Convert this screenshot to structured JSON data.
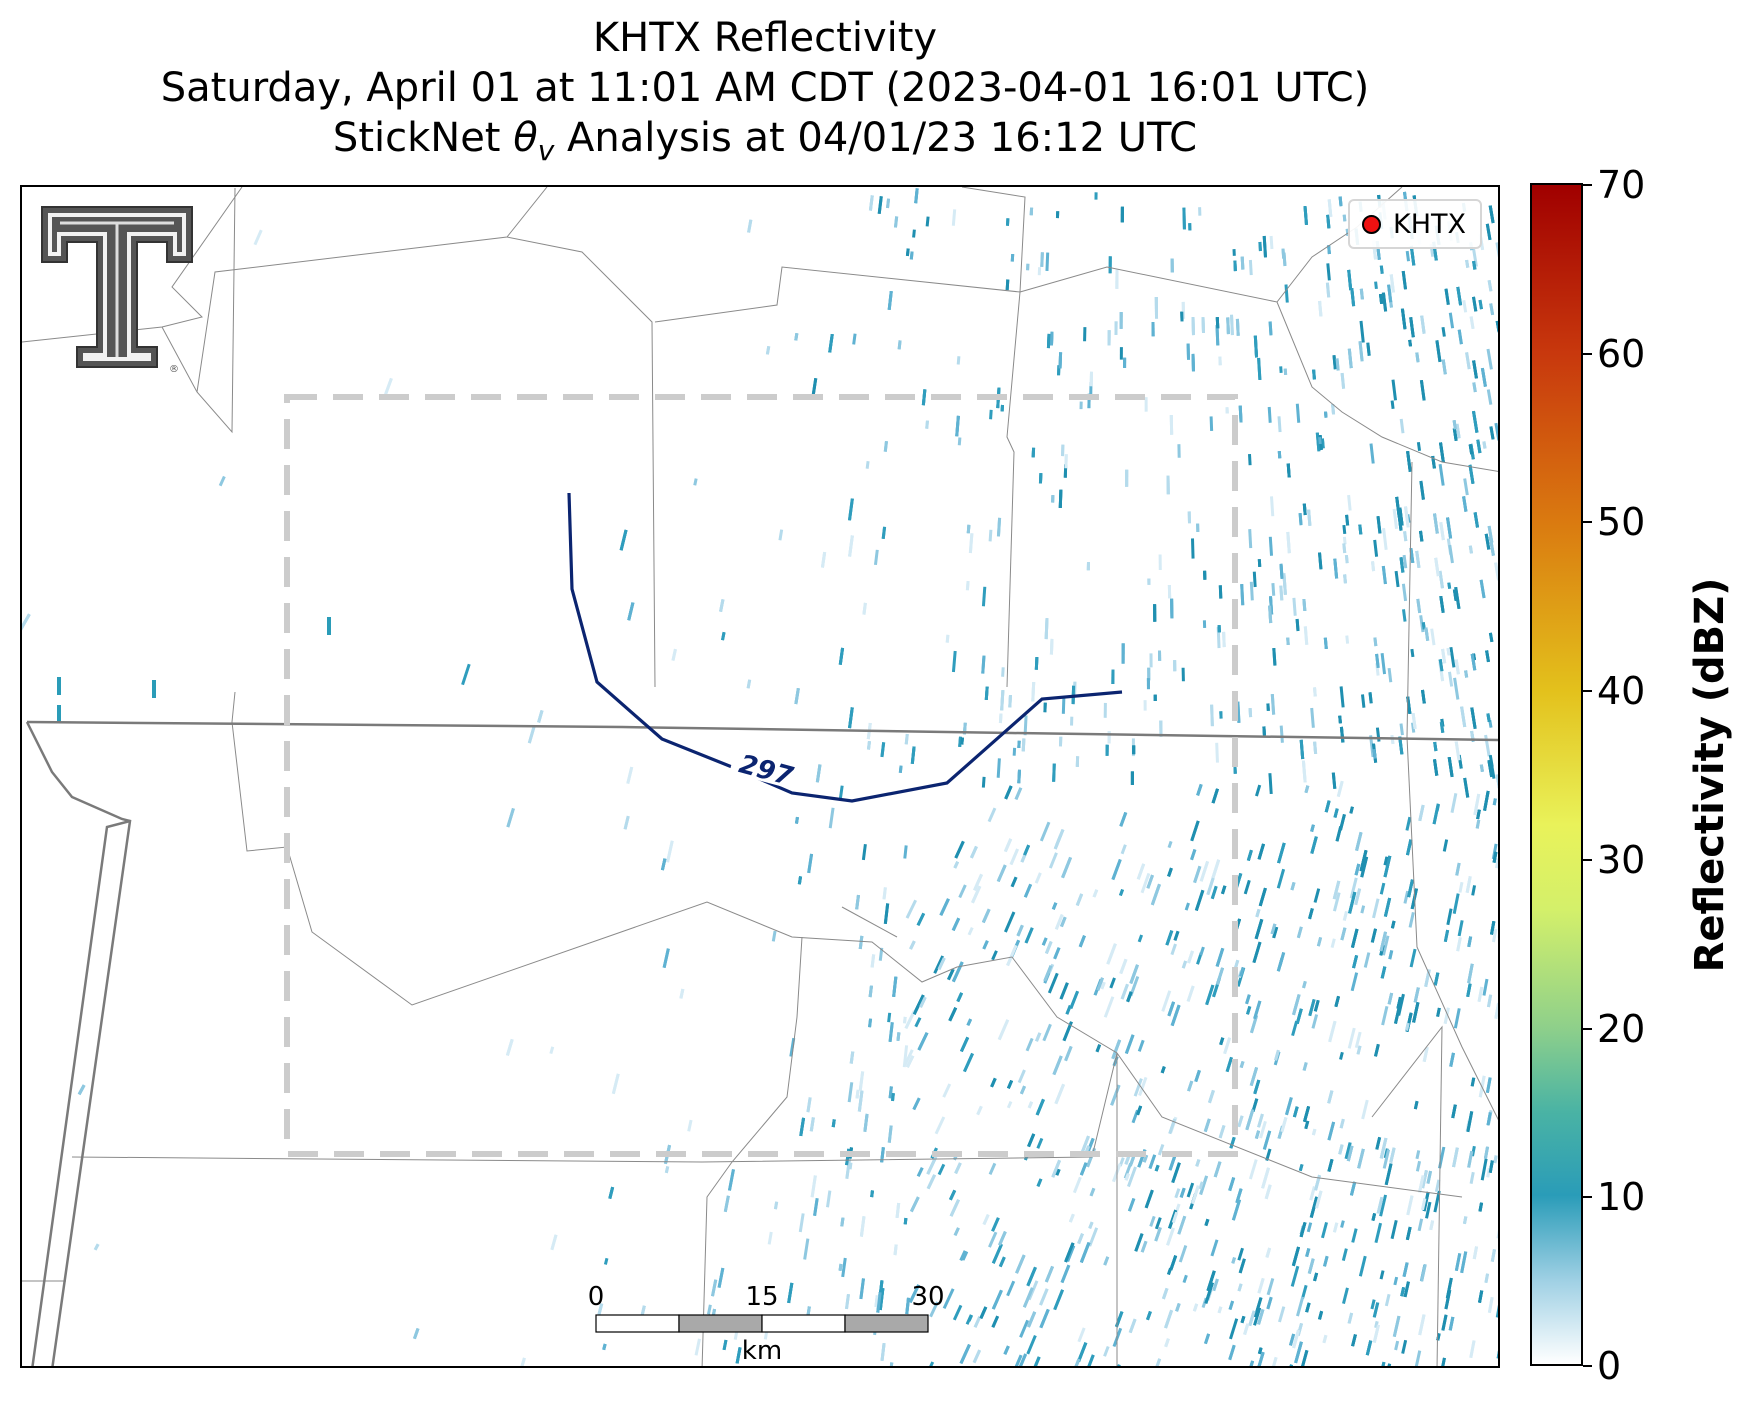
{
  "title": {
    "line1": "KHTX Reflectivity",
    "line2": "Saturday, April 01 at 11:01 AM CDT (2023-04-01 16:01 UTC)",
    "line3_prefix": "StickNet ",
    "line3_theta": "θ",
    "line3_sub": "v",
    "line3_suffix": " Analysis at 04/01/23 16:12 UTC"
  },
  "legend": {
    "marker_color": "#ee1111",
    "label": "KHTX"
  },
  "contour": {
    "label": "297",
    "color": "#0b2470"
  },
  "colorbar": {
    "title": "Reflectivity (dBZ)",
    "ticks": [
      "0",
      "10",
      "20",
      "30",
      "40",
      "50",
      "60",
      "70"
    ],
    "min": 0,
    "max": 70,
    "stops": [
      {
        "v": 0,
        "c": "#ffffff"
      },
      {
        "v": 5,
        "c": "#9fd0e4"
      },
      {
        "v": 10,
        "c": "#2a9cb8"
      },
      {
        "v": 15,
        "c": "#4ab3a4"
      },
      {
        "v": 20,
        "c": "#8fd08a"
      },
      {
        "v": 27,
        "c": "#d4f06a"
      },
      {
        "v": 32,
        "c": "#e9f25a"
      },
      {
        "v": 40,
        "c": "#e3c11c"
      },
      {
        "v": 50,
        "c": "#da7a10"
      },
      {
        "v": 60,
        "c": "#c8380d"
      },
      {
        "v": 70,
        "c": "#a00000"
      }
    ]
  },
  "scale_bar": {
    "labels": [
      "0",
      "15",
      "30"
    ],
    "unit": "km"
  },
  "logo": {
    "icon": "texas-tech-double-t-logo",
    "mark": "®"
  }
}
